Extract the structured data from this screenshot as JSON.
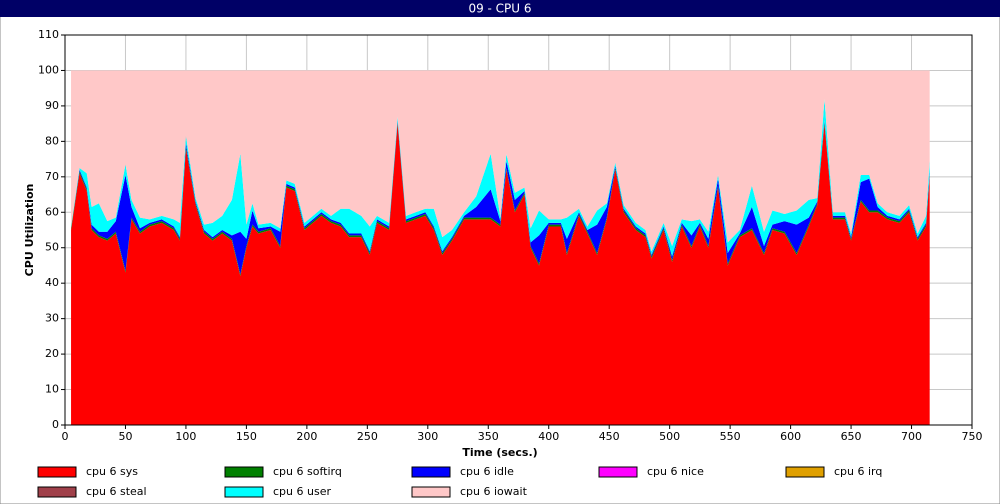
{
  "chart_data": {
    "type": "stacked-area",
    "title": "09 - CPU 6",
    "xlabel": "Time (secs.)",
    "ylabel": "CPU Utilization",
    "xlim": [
      0,
      750
    ],
    "ylim": [
      0,
      110
    ],
    "xticks": [
      0,
      50,
      100,
      150,
      200,
      250,
      300,
      350,
      400,
      450,
      500,
      550,
      600,
      650,
      700,
      750
    ],
    "yticks": [
      0,
      10,
      20,
      30,
      40,
      50,
      60,
      70,
      80,
      90,
      100,
      110
    ],
    "grid": true,
    "x": [
      5,
      12,
      18,
      22,
      28,
      35,
      42,
      50,
      55,
      62,
      70,
      80,
      90,
      95,
      100,
      108,
      115,
      122,
      130,
      138,
      145,
      150,
      155,
      160,
      170,
      178,
      183,
      190,
      198,
      205,
      212,
      220,
      228,
      235,
      245,
      252,
      258,
      268,
      275,
      282,
      290,
      298,
      305,
      312,
      320,
      330,
      340,
      352,
      360,
      365,
      372,
      380,
      385,
      392,
      400,
      410,
      415,
      425,
      432,
      440,
      448,
      455,
      462,
      472,
      480,
      485,
      495,
      502,
      510,
      518,
      525,
      532,
      540,
      548,
      558,
      568,
      578,
      585,
      595,
      605,
      615,
      622,
      628,
      635,
      645,
      650,
      658,
      665,
      672,
      680,
      690,
      698,
      705,
      712,
      715
    ],
    "series": [
      {
        "name": "cpu 6 sys",
        "color": "#ff0000",
        "values": [
          55,
          71,
          66,
          55,
          53,
          52,
          54,
          43,
          58,
          54,
          56,
          57,
          55,
          52,
          78,
          62,
          54,
          52,
          54,
          52,
          42,
          50,
          56,
          54,
          55,
          50,
          67,
          66,
          55,
          57,
          59,
          57,
          56,
          53,
          53,
          48,
          57,
          55,
          85,
          57,
          58,
          59,
          55,
          48,
          52,
          58,
          58,
          58,
          56,
          72,
          60,
          65,
          50,
          45,
          56,
          56,
          48,
          59,
          54,
          48,
          58,
          72,
          60,
          55,
          53,
          47,
          55,
          46,
          56,
          50,
          56,
          50,
          67,
          45,
          53,
          55,
          48,
          55,
          54,
          48,
          56,
          62,
          85,
          58,
          58,
          52,
          63,
          60,
          60,
          58,
          57,
          60,
          52,
          56,
          70
        ]
      },
      {
        "name": "cpu 6 softirq",
        "color": "#008000",
        "values": [
          0.5,
          0.5,
          0.5,
          0.5,
          0.5,
          0.5,
          0.5,
          0.5,
          0.5,
          0.5,
          0.5,
          0.5,
          0.5,
          0.5,
          0.5,
          0.5,
          0.5,
          0.5,
          0.5,
          0.5,
          0.5,
          0.5,
          0.5,
          0.5,
          0.5,
          0.5,
          0.5,
          0.5,
          0.5,
          0.5,
          0.5,
          0.5,
          0.5,
          0.5,
          0.5,
          0.5,
          0.5,
          0.5,
          0.5,
          0.5,
          0.5,
          0.5,
          0.5,
          0.5,
          0.5,
          0.5,
          0.5,
          0.5,
          0.5,
          0.5,
          0.5,
          0.5,
          0.5,
          0.5,
          0.5,
          0.5,
          0.5,
          0.5,
          0.5,
          0.5,
          0.5,
          0.5,
          0.5,
          0.5,
          0.5,
          0.5,
          0.5,
          0.5,
          0.5,
          0.5,
          0.5,
          0.5,
          0.5,
          0.5,
          0.5,
          0.5,
          0.5,
          0.5,
          0.5,
          0.5,
          0.5,
          0.5,
          0.5,
          0.5,
          0.5,
          0.5,
          0.5,
          0.5,
          0.5,
          0.5,
          0.5,
          0.5,
          0.5,
          0.5,
          0.5
        ]
      },
      {
        "name": "cpu 6 idle",
        "color": "#0000ff",
        "values": [
          0,
          0.5,
          0.5,
          1,
          1,
          2,
          3,
          27,
          3,
          1,
          0.5,
          0.5,
          0.5,
          0.5,
          1,
          0.5,
          0.5,
          0.5,
          0.5,
          1,
          12,
          2,
          4,
          1,
          0.5,
          4,
          0.5,
          0.5,
          0.5,
          0.5,
          0.5,
          0.5,
          0.5,
          0.5,
          0.5,
          0.5,
          0.5,
          0.5,
          0.5,
          0.5,
          0.5,
          0.5,
          0.5,
          0.5,
          0.5,
          0.5,
          3,
          8,
          1,
          2,
          3,
          0.5,
          1,
          8,
          0.5,
          0.5,
          4,
          0.5,
          0.5,
          8,
          3,
          0.5,
          0.5,
          0.5,
          0.5,
          0.5,
          0.5,
          1,
          0.5,
          3,
          0.5,
          2,
          2,
          3,
          0.5,
          6,
          2,
          1,
          3,
          8,
          2,
          0.5,
          0.5,
          0.5,
          0.5,
          0.5,
          5,
          9,
          1,
          0.5,
          0.5,
          0.5,
          0.5,
          0.5,
          1
        ]
      },
      {
        "name": "cpu 6 nice",
        "color": "#ff00ff",
        "values": [
          0,
          0,
          0,
          0,
          0,
          0,
          0,
          0,
          0,
          0,
          0,
          0,
          0,
          0,
          0,
          0,
          0,
          0,
          0,
          0,
          0,
          0,
          0,
          0,
          0,
          0,
          0,
          0,
          0,
          0,
          0,
          0,
          0,
          0,
          0,
          0,
          0,
          0,
          0,
          0,
          0,
          0,
          0,
          0,
          0,
          0,
          0,
          0,
          0,
          0,
          0,
          0,
          0,
          0,
          0,
          0,
          0,
          0,
          0,
          0,
          0,
          0,
          0,
          0,
          0,
          0,
          0,
          0,
          0,
          0,
          0,
          0,
          0,
          0,
          0,
          0,
          0,
          0,
          0,
          0,
          0,
          0,
          0,
          0,
          0,
          0,
          0,
          0,
          0,
          0,
          0,
          0,
          0,
          0,
          0
        ]
      },
      {
        "name": "cpu 6 irq",
        "color": "#e0a000",
        "values": [
          0,
          0,
          0,
          0,
          0,
          0,
          0,
          0,
          0,
          0,
          0,
          0,
          0,
          0,
          0,
          0,
          0,
          0,
          0,
          0,
          0,
          0,
          0,
          0,
          0,
          0,
          0,
          0,
          0,
          0,
          0,
          0,
          0,
          0,
          0,
          0,
          0,
          0,
          0,
          0,
          0,
          0,
          0,
          0,
          0,
          0,
          0,
          0,
          0,
          0,
          0,
          0,
          0,
          0,
          0,
          0,
          0,
          0,
          0,
          0,
          0,
          0,
          0,
          0,
          0,
          0,
          0,
          0,
          0,
          0,
          0,
          0,
          0,
          0,
          0,
          0,
          0,
          0,
          0,
          0,
          0,
          0,
          0,
          0,
          0,
          0,
          0,
          0,
          0,
          0,
          0,
          0,
          0,
          0,
          0
        ]
      },
      {
        "name": "cpu 6 steal",
        "color": "#a0404a",
        "values": [
          0,
          0,
          0,
          0,
          0,
          0,
          0,
          0,
          0,
          0,
          0,
          0,
          0,
          0,
          0,
          0,
          0,
          0,
          0,
          0,
          0,
          0,
          0,
          0,
          0,
          0,
          0,
          0,
          0,
          0,
          0,
          0,
          0,
          0,
          0,
          0,
          0,
          0,
          0,
          0,
          0,
          0,
          0,
          0,
          0,
          0,
          0,
          0,
          0,
          0,
          0,
          0,
          0,
          0,
          0,
          0,
          0,
          0,
          0,
          0,
          0,
          0,
          0,
          0,
          0,
          0,
          0,
          0,
          0,
          0,
          0,
          0,
          0,
          0,
          0,
          0,
          0,
          0,
          0,
          0,
          0,
          0,
          0,
          0,
          0,
          0,
          0,
          0,
          0,
          0,
          0,
          0,
          0,
          0,
          0
        ]
      },
      {
        "name": "cpu 6 user",
        "color": "#00ffff",
        "values": [
          0.5,
          0.5,
          4,
          5,
          8,
          3,
          1,
          3,
          2,
          3,
          1,
          1,
          2,
          4,
          2,
          1,
          1.5,
          4,
          4,
          10,
          22,
          4,
          2,
          1,
          1,
          1,
          1,
          1,
          1,
          1,
          1,
          1,
          4,
          7,
          5,
          7,
          1,
          1,
          1,
          1,
          1,
          1,
          5,
          4,
          2,
          1,
          3,
          10,
          1,
          2,
          2,
          1,
          4,
          7,
          1,
          1,
          6,
          1,
          1,
          4,
          1,
          1,
          1,
          1,
          1,
          1,
          1,
          3,
          1,
          4,
          1,
          2,
          1,
          3,
          1,
          6,
          4,
          4,
          2,
          4,
          5,
          1,
          6,
          1,
          1,
          1,
          2,
          1,
          1,
          1,
          1,
          1,
          1,
          2,
          3
        ]
      },
      {
        "name": "cpu 6 iowait",
        "color": "#ffc8c8",
        "values": [
          44,
          27.5,
          29,
          38.5,
          37.5,
          42.5,
          41.5,
          26.5,
          36.5,
          41.5,
          42,
          41,
          42,
          43,
          18.5,
          36,
          43.5,
          43,
          41,
          36.5,
          23.5,
          43.5,
          37.5,
          43.5,
          43,
          44.5,
          31,
          32,
          43,
          41,
          39,
          41,
          39,
          39,
          41,
          44,
          41,
          43,
          13,
          41,
          40,
          39,
          39,
          47,
          45,
          40,
          35.5,
          23.5,
          41.5,
          23.5,
          34.5,
          33,
          44.5,
          39.5,
          42,
          42,
          41.5,
          39,
          44,
          39.5,
          37.5,
          26,
          38,
          43,
          45,
          51,
          43,
          49.5,
          42,
          42.5,
          42,
          45.5,
          29.5,
          48.5,
          45,
          32.5,
          45.5,
          39.5,
          40.5,
          39.5,
          36.5,
          36,
          8,
          40,
          40,
          46,
          29.5,
          29.5,
          37.5,
          40,
          41,
          38,
          46,
          41,
          25.5
        ]
      }
    ]
  }
}
